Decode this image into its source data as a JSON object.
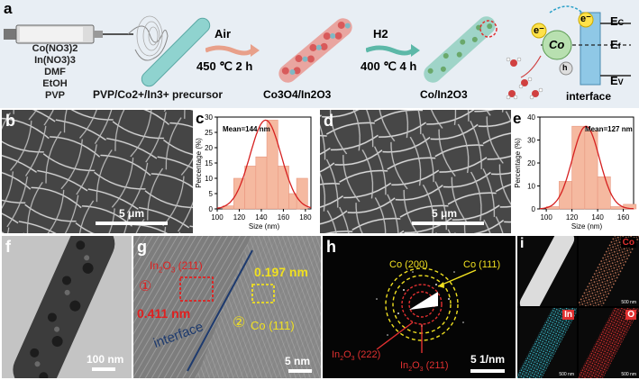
{
  "panel_a": {
    "label": "a",
    "syringe_reagents": [
      "Co(NO3)2",
      "In(NO3)3",
      "DMF",
      "EtOH",
      "PVP"
    ],
    "precursor_label": "PVP/Co2+/In3+ precursor",
    "step1_gas": "Air",
    "step1_condition": "450 ℃ 2 h",
    "step2_gas": "H2",
    "step2_condition": "400 ℃ 4 h",
    "product1_label": "Co3O4/In2O3",
    "product2_label": "Co/In2O3",
    "band_Ec": "Ec",
    "band_Ef": "Ef",
    "band_Ev": "Ev",
    "electron_symbol": "e⁻",
    "co_symbol": "Co",
    "hole_symbol": "h",
    "interface_label": "interface",
    "colors": {
      "rod": "#8fd3cf",
      "arrow": "#e8a08a",
      "h2_arrow": "#5cb8a8",
      "co3o4": "#e07a7a",
      "co": "#7ab07a",
      "band": "#9fd0e8"
    }
  },
  "panel_b": {
    "label": "b",
    "scale": "5 μm"
  },
  "panel_c": {
    "label": "c"
  },
  "panel_d": {
    "label": "d",
    "scale": "5 μm"
  },
  "panel_e": {
    "label": "e"
  },
  "panel_f": {
    "label": "f",
    "scale": "100 nm"
  },
  "panel_g": {
    "label": "g",
    "phase1": "In2O3 (211)",
    "circle1": "①",
    "d1": "0.411 nm",
    "d2": "0.197 nm",
    "circle2": "②",
    "phase2": "Co (111)",
    "interface": "interface",
    "scale": "5 nm"
  },
  "panel_h": {
    "label": "h",
    "ring1": "Co (200)",
    "ring2": "Co (111)",
    "ring3": "In2O3 (222)",
    "ring4": "In2O3 (211)",
    "scale": "5 1/nm"
  },
  "panel_i": {
    "label": "i",
    "maps": [
      "Co",
      "In",
      "O"
    ],
    "map_scale": "500 nm"
  },
  "chart_data": [
    {
      "type": "bar",
      "panel": "c",
      "categories": [
        110,
        120,
        130,
        140,
        150,
        160,
        170
      ],
      "values": [
        1,
        10,
        14,
        17,
        29,
        14,
        5
      ],
      "extra_bar": {
        "x": 177,
        "value": 10
      },
      "fit": "gaussian",
      "annotation": "Mean=144 nm",
      "xlabel": "Size (nm)",
      "ylabel": "Percentage (%)",
      "xticks": [
        100,
        120,
        140,
        160,
        180
      ],
      "yticks": [
        0,
        5,
        10,
        15,
        20,
        25,
        30
      ],
      "xlim": [
        100,
        185
      ],
      "ylim": [
        0,
        30
      ]
    },
    {
      "type": "bar",
      "panel": "e",
      "categories": [
        105,
        115,
        125,
        135,
        145,
        155,
        165
      ],
      "values": [
        1,
        12,
        36,
        34,
        14,
        1,
        2
      ],
      "fit": "gaussian",
      "annotation": "Mean=127 nm",
      "xlabel": "Size (nm)",
      "ylabel": "Percentage (%)",
      "xticks": [
        100,
        120,
        140,
        160
      ],
      "yticks": [
        0,
        10,
        20,
        30,
        40
      ],
      "xlim": [
        95,
        168
      ],
      "ylim": [
        0,
        40
      ]
    }
  ]
}
